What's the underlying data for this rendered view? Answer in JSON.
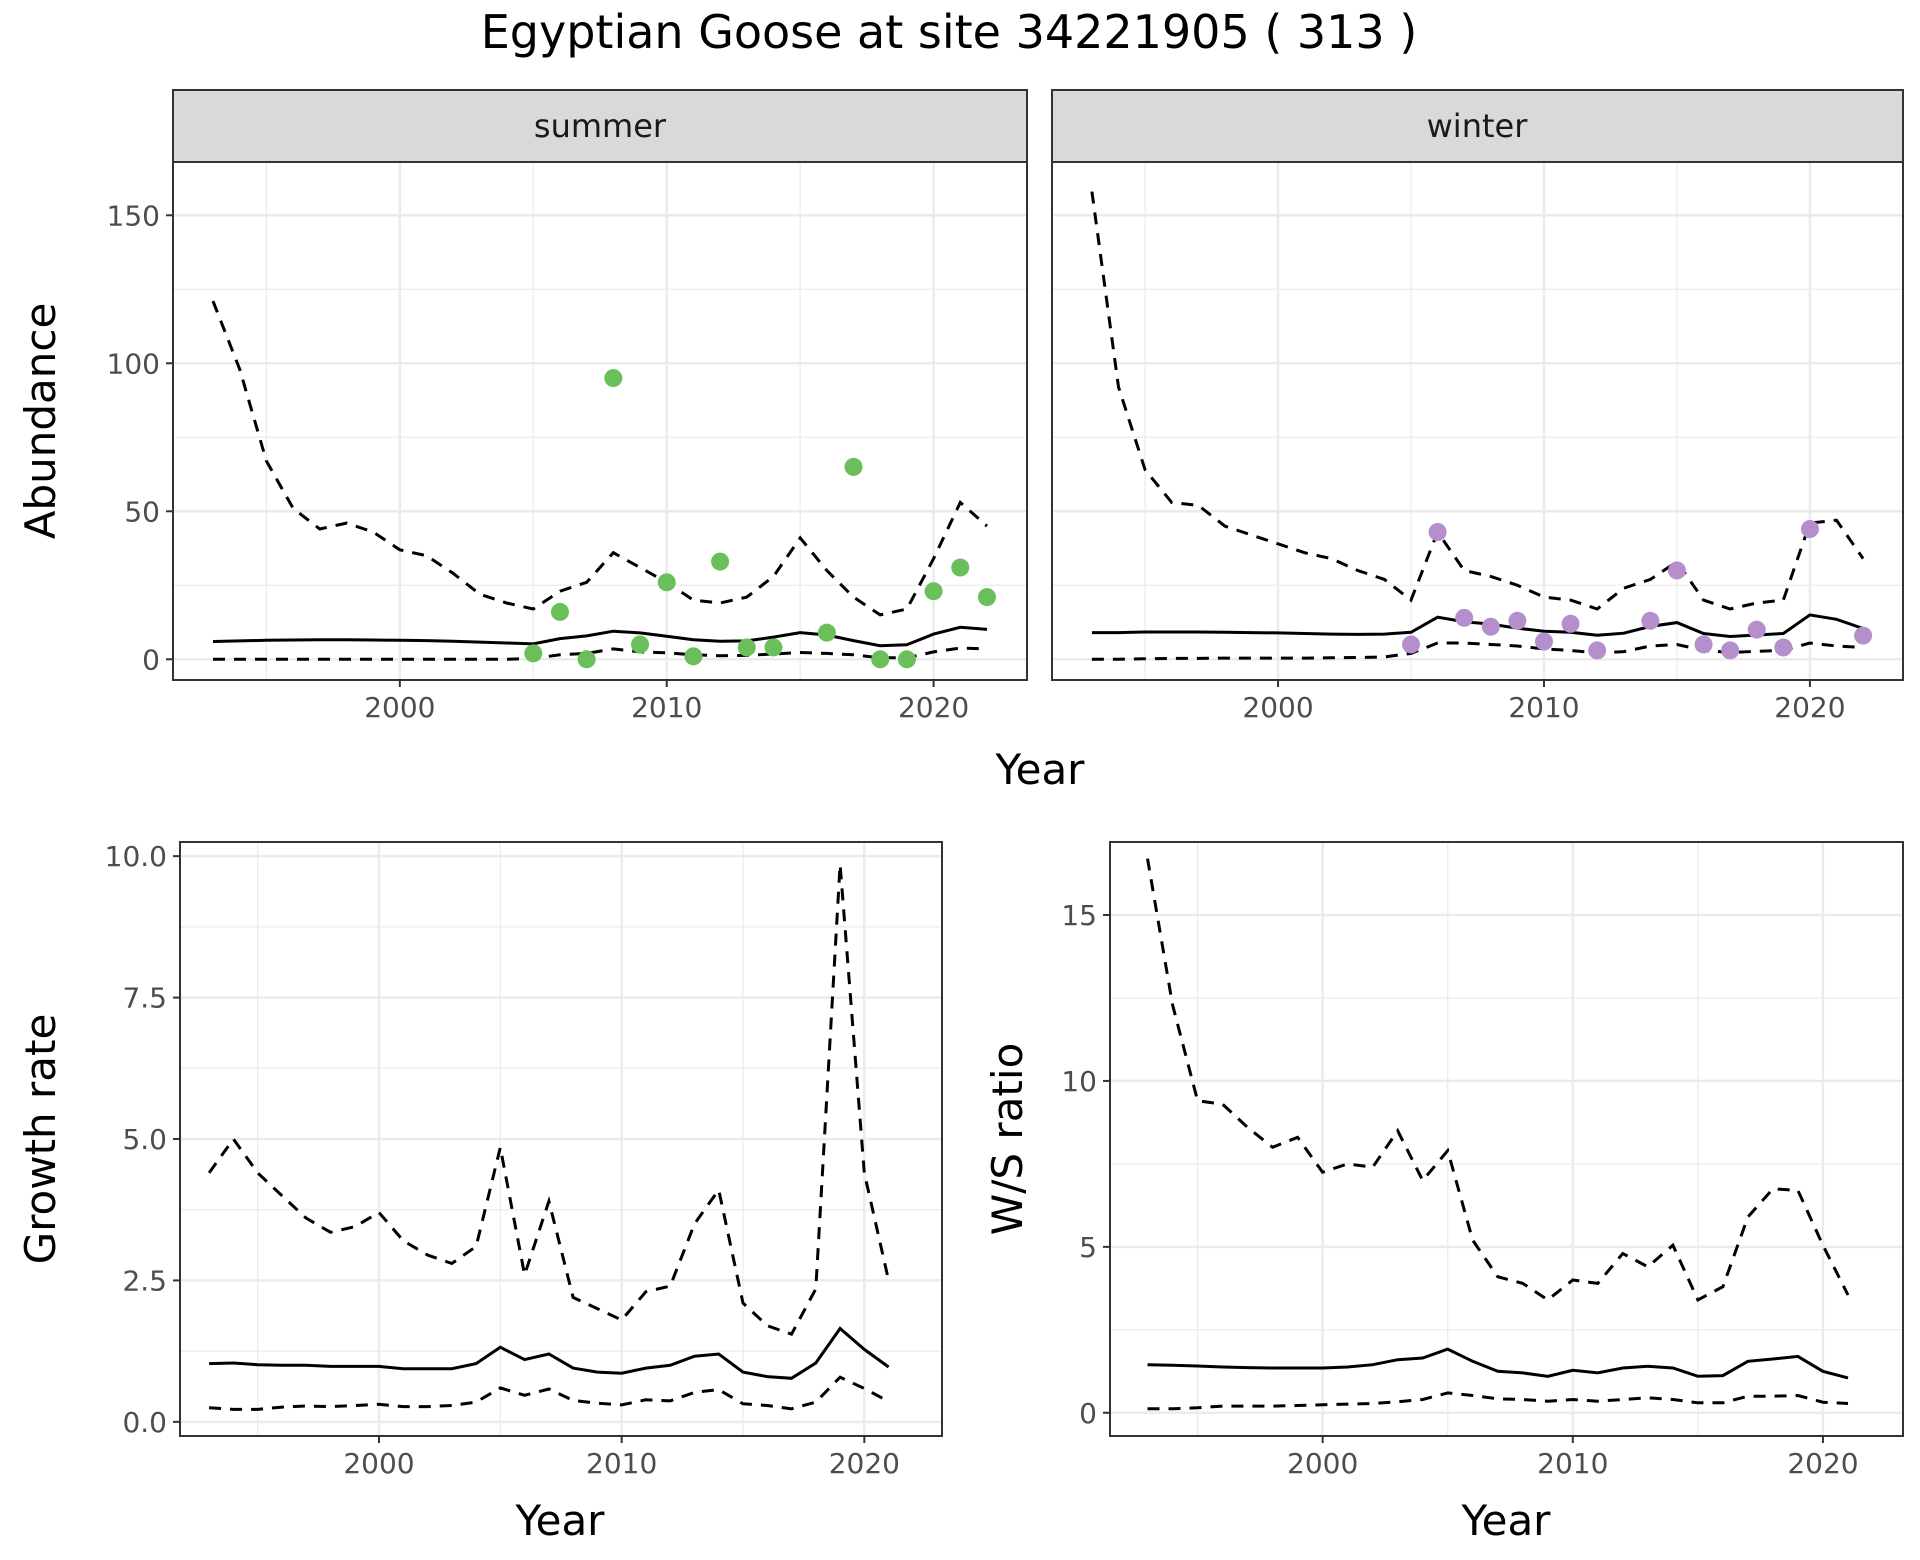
{
  "title": "Egyptian Goose at site 34221905 ( 313 )",
  "colors": {
    "summer": "#6abf5a",
    "winter": "#b48fcc",
    "line": "#000000",
    "grid": "#ebebeb",
    "strip": "#d9d9d9",
    "border": "#333333"
  },
  "chart_data": [
    {
      "type": "line",
      "panel": "abundance",
      "facets": [
        "summer",
        "winter"
      ],
      "xlabel": "Year",
      "ylabel": "Abundance",
      "xlim": [
        1991.5,
        2023.5
      ],
      "ylim": [
        -7,
        168
      ],
      "xticks": [
        2000,
        2010,
        2020
      ],
      "yticks": [
        0,
        50,
        100,
        150
      ],
      "x": [
        1993,
        1994,
        1995,
        1996,
        1997,
        1998,
        1999,
        2000,
        2001,
        2002,
        2003,
        2004,
        2005,
        2006,
        2007,
        2008,
        2009,
        2010,
        2011,
        2012,
        2013,
        2014,
        2015,
        2016,
        2017,
        2018,
        2019,
        2020,
        2021,
        2022
      ],
      "series": [
        {
          "facet": "summer",
          "mean": [
            6,
            6.2,
            6.4,
            6.5,
            6.6,
            6.6,
            6.5,
            6.4,
            6.3,
            6.1,
            5.8,
            5.5,
            5.2,
            7,
            7.9,
            9.5,
            8.9,
            7.8,
            6.6,
            6.1,
            6.2,
            7.5,
            9,
            8.2,
            6.3,
            4.6,
            4.9,
            8.5,
            10.8,
            10.1
          ],
          "upper": [
            121,
            98,
            67,
            51,
            44,
            46,
            43,
            37,
            35,
            29,
            22,
            19,
            17,
            23,
            26,
            36,
            31,
            26,
            20,
            19,
            21,
            28,
            41,
            30,
            21,
            15,
            17,
            34,
            53,
            45
          ],
          "lower": [
            0,
            0,
            0,
            0,
            0,
            0,
            0,
            0,
            0,
            0,
            0,
            0,
            0.3,
            1.5,
            2,
            3.5,
            2.5,
            2.2,
            1.5,
            1.2,
            1.3,
            1.8,
            2.3,
            2,
            1.5,
            0.5,
            0.5,
            2.5,
            3.8,
            3.5
          ],
          "points": {
            "x": [
              2005,
              2006,
              2007,
              2008,
              2009,
              2010,
              2011,
              2012,
              2013,
              2014,
              2016,
              2017,
              2018,
              2019,
              2020,
              2021,
              2022
            ],
            "y": [
              2,
              16,
              0,
              95,
              5,
              26,
              1,
              33,
              4,
              4,
              9,
              65,
              0,
              0,
              23,
              31,
              21
            ]
          }
        },
        {
          "facet": "winter",
          "mean": [
            9,
            9,
            9.2,
            9.2,
            9.2,
            9.1,
            9,
            8.9,
            8.7,
            8.5,
            8.4,
            8.5,
            9.1,
            14.2,
            12.7,
            11.9,
            10.5,
            9.5,
            9.1,
            8.1,
            8.8,
            11.1,
            12.4,
            8.7,
            7.7,
            8.2,
            8.7,
            15,
            13.5,
            10.4
          ],
          "upper": [
            158,
            92,
            64,
            53,
            52,
            45,
            42,
            39,
            36,
            34,
            30,
            27,
            20,
            43,
            30,
            28,
            25,
            21,
            20,
            17,
            24,
            27,
            33,
            20,
            17,
            19,
            20,
            46,
            47,
            34
          ],
          "lower": [
            0,
            0,
            0.2,
            0.3,
            0.3,
            0.4,
            0.4,
            0.4,
            0.4,
            0.5,
            0.6,
            0.8,
            2,
            5.5,
            5.5,
            5,
            4.5,
            3.5,
            3,
            2.1,
            2.6,
            4.5,
            5,
            3,
            2.3,
            2.7,
            3,
            5.5,
            4.5,
            4
          ],
          "points": {
            "x": [
              2005,
              2006,
              2007,
              2008,
              2009,
              2010,
              2011,
              2012,
              2014,
              2015,
              2016,
              2017,
              2018,
              2019,
              2020,
              2022
            ],
            "y": [
              5,
              43,
              14,
              11,
              13,
              6,
              12,
              3,
              13,
              30,
              5,
              3,
              10,
              4,
              44,
              8
            ]
          }
        }
      ]
    },
    {
      "type": "line",
      "panel": "growth",
      "xlabel": "Year",
      "ylabel": "Growth rate",
      "xlim": [
        1991.8,
        2023.2
      ],
      "ylim": [
        -0.25,
        10.25
      ],
      "xticks": [
        2000,
        2010,
        2020
      ],
      "yticks": [
        0.0,
        2.5,
        5.0,
        7.5,
        10.0
      ],
      "ytick_labels": [
        "0.0",
        "2.5",
        "5.0",
        "7.5",
        "10.0"
      ],
      "x": [
        1993,
        1994,
        1995,
        1996,
        1997,
        1998,
        1999,
        2000,
        2001,
        2002,
        2003,
        2004,
        2005,
        2006,
        2007,
        2008,
        2009,
        2010,
        2011,
        2012,
        2013,
        2014,
        2015,
        2016,
        2017,
        2018,
        2019,
        2020,
        2021
      ],
      "series": [
        {
          "mean": [
            1.03,
            1.04,
            1.01,
            1,
            1,
            0.98,
            0.98,
            0.98,
            0.94,
            0.94,
            0.94,
            1.03,
            1.32,
            1.1,
            1.2,
            0.95,
            0.88,
            0.86,
            0.95,
            1,
            1.16,
            1.2,
            0.88,
            0.8,
            0.77,
            1.04,
            1.65,
            1.28,
            0.97
          ],
          "upper": [
            4.4,
            5,
            4.4,
            4,
            3.6,
            3.35,
            3.45,
            3.7,
            3.2,
            2.95,
            2.8,
            3.1,
            4.85,
            2.6,
            3.9,
            2.2,
            2,
            1.8,
            2.3,
            2.4,
            3.5,
            4.1,
            2.1,
            1.7,
            1.55,
            2.35,
            9.85,
            4.4,
            2.5
          ],
          "lower": [
            0.25,
            0.22,
            0.22,
            0.26,
            0.28,
            0.27,
            0.29,
            0.31,
            0.27,
            0.27,
            0.29,
            0.35,
            0.6,
            0.47,
            0.58,
            0.38,
            0.33,
            0.3,
            0.39,
            0.37,
            0.52,
            0.57,
            0.32,
            0.29,
            0.23,
            0.35,
            0.79,
            0.59,
            0.36
          ]
        }
      ]
    },
    {
      "type": "line",
      "panel": "ws_ratio",
      "xlabel": "Year",
      "ylabel": "W/S ratio",
      "xlim": [
        1991.5,
        2023.2
      ],
      "ylim": [
        -0.7,
        17.2
      ],
      "xticks": [
        2000,
        2010,
        2020
      ],
      "yticks": [
        0,
        5,
        10,
        15
      ],
      "x": [
        1993,
        1994,
        1995,
        1996,
        1997,
        1998,
        1999,
        2000,
        2001,
        2002,
        2003,
        2004,
        2005,
        2006,
        2007,
        2008,
        2009,
        2010,
        2011,
        2012,
        2013,
        2014,
        2015,
        2016,
        2017,
        2018,
        2019,
        2020,
        2021
      ],
      "series": [
        {
          "mean": [
            1.45,
            1.43,
            1.41,
            1.38,
            1.36,
            1.35,
            1.35,
            1.35,
            1.38,
            1.45,
            1.6,
            1.65,
            1.92,
            1.55,
            1.25,
            1.2,
            1.1,
            1.28,
            1.2,
            1.35,
            1.4,
            1.35,
            1.1,
            1.12,
            1.55,
            1.62,
            1.7,
            1.25,
            1.05
          ],
          "upper": [
            16.7,
            12.3,
            9.4,
            9.3,
            8.6,
            8,
            8.3,
            7.25,
            7.5,
            7.4,
            8.5,
            7,
            7.9,
            5.2,
            4.1,
            3.9,
            3.4,
            4,
            3.9,
            4.8,
            4.4,
            5.05,
            3.4,
            3.8,
            5.9,
            6.75,
            6.7,
            5.05,
            3.55
          ],
          "lower": [
            0.12,
            0.12,
            0.15,
            0.2,
            0.2,
            0.2,
            0.22,
            0.24,
            0.26,
            0.28,
            0.33,
            0.4,
            0.6,
            0.52,
            0.42,
            0.4,
            0.35,
            0.4,
            0.35,
            0.4,
            0.45,
            0.4,
            0.3,
            0.3,
            0.5,
            0.5,
            0.52,
            0.32,
            0.28
          ]
        }
      ]
    }
  ]
}
